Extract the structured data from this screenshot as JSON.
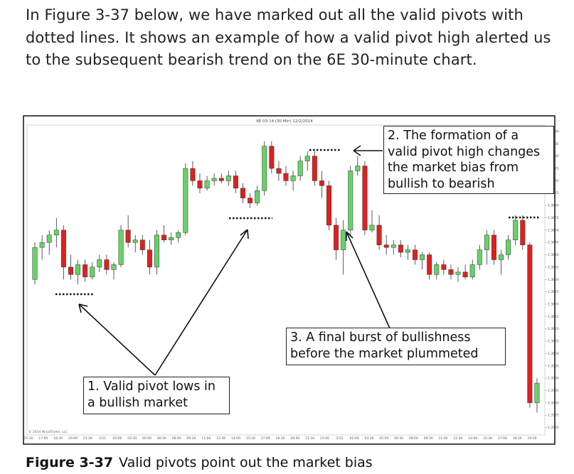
{
  "paragraph": "In Figure 3-37 below, we have marked out all the valid pivots with dotted lines. It shows an example of how a valid pivot high alerted us to the subsequent bearish trend on the 6E 30-minute chart.",
  "chart_data": {
    "type": "candlestick",
    "title": "6E 03-14 (30 Min) 12/2/2014",
    "copyright": "© 2014 NinjaTrader, LLC",
    "up_color": "#66d366",
    "down_color": "#e0201f",
    "ylim": [
      1.3567,
      1.3692
    ],
    "yticks": [
      {
        "value": 1.357,
        "label": "1.3570"
      },
      1.3575,
      {
        "value": 1.358,
        "label": "1.3580"
      },
      1.3585,
      {
        "value": 1.359,
        "label": "1.3590"
      },
      1.3595,
      {
        "value": 1.36,
        "label": "1.3600"
      },
      1.3605,
      {
        "value": 1.361,
        "label": "1.3610"
      },
      1.3615,
      {
        "value": 1.362,
        "label": "1.3620"
      },
      1.3625,
      {
        "value": 1.363,
        "label": "1.3630"
      },
      1.3635,
      {
        "value": 1.364,
        "label": "1.3640"
      },
      1.3645,
      {
        "value": 1.365,
        "label": "1.3650"
      },
      1.3655,
      {
        "value": 1.366,
        "label": "1.3660"
      },
      1.3665,
      {
        "value": 1.367,
        "label": "1.3670"
      },
      1.3675,
      {
        "value": 1.368,
        "label": "1.3680"
      },
      1.3685,
      {
        "value": 1.369,
        "label": "1.3690"
      }
    ],
    "xtick_labels": [
      "15:30",
      "17:00",
      "18:30",
      "20:00",
      "21:30",
      "2/11",
      "02:00",
      "03:30",
      "05:00",
      "06:30",
      "08:00",
      "09:30",
      "11:00",
      "12:30",
      "14:00",
      "15:30",
      "17:00",
      "18:30",
      "20:00",
      "21:30",
      "23:00",
      "2/12",
      "02:00",
      "03:30",
      "05:00",
      "06:30",
      "08:00",
      "09:30",
      "11:00",
      "12:30",
      "14:00",
      "15:30",
      "17:00",
      "18:30",
      "19:30"
    ],
    "open": [
      1.363,
      1.3643,
      1.3645,
      1.3648,
      1.365,
      1.3635,
      1.3632,
      1.3636,
      1.3631,
      1.3635,
      1.3638,
      1.3634,
      1.3636,
      1.365,
      1.3645,
      1.3646,
      1.3642,
      1.3635,
      1.3648,
      1.3646,
      1.3647,
      1.3649,
      1.3675,
      1.367,
      1.3667,
      1.367,
      1.3671,
      1.367,
      1.3672,
      1.3667,
      1.3663,
      1.3661,
      1.3666,
      1.3684,
      1.3675,
      1.3673,
      1.367,
      1.3672,
      1.3678,
      1.368,
      1.367,
      1.3668,
      1.3652,
      1.3642,
      1.365,
      1.3674,
      1.3676,
      1.365,
      1.3652,
      1.3644,
      1.3643,
      1.3644,
      1.3641,
      1.3642,
      1.3638,
      1.364,
      1.3632,
      1.3636,
      1.3634,
      1.3632,
      1.3633,
      1.3631,
      1.3636,
      1.3642,
      1.3648,
      1.3638,
      1.364,
      1.3646,
      1.3654,
      1.3644,
      1.358
    ],
    "high": [
      1.3645,
      1.3648,
      1.365,
      1.3655,
      1.3652,
      1.364,
      1.3638,
      1.3638,
      1.3637,
      1.364,
      1.364,
      1.3637,
      1.3652,
      1.3656,
      1.3648,
      1.3648,
      1.3646,
      1.365,
      1.3652,
      1.3649,
      1.365,
      1.3677,
      1.3678,
      1.3673,
      1.3672,
      1.3673,
      1.3673,
      1.3674,
      1.3674,
      1.3669,
      1.3665,
      1.3668,
      1.3686,
      1.3686,
      1.3678,
      1.3676,
      1.3674,
      1.368,
      1.3682,
      1.3682,
      1.3674,
      1.367,
      1.3655,
      1.3654,
      1.3676,
      1.368,
      1.3678,
      1.3658,
      1.3656,
      1.3648,
      1.3646,
      1.3646,
      1.3644,
      1.3644,
      1.3641,
      1.3641,
      1.3637,
      1.3638,
      1.3636,
      1.3635,
      1.3636,
      1.3638,
      1.3644,
      1.365,
      1.365,
      1.3642,
      1.3648,
      1.3656,
      1.3656,
      1.3645,
      1.359
    ],
    "low": [
      1.3628,
      1.3638,
      1.364,
      1.3643,
      1.363,
      1.363,
      1.3628,
      1.3629,
      1.363,
      1.3633,
      1.3632,
      1.363,
      1.3635,
      1.3643,
      1.3641,
      1.364,
      1.3632,
      1.3632,
      1.3645,
      1.3644,
      1.3645,
      1.3648,
      1.3668,
      1.3665,
      1.3666,
      1.3668,
      1.3669,
      1.3668,
      1.3665,
      1.3661,
      1.3659,
      1.366,
      1.3664,
      1.3673,
      1.367,
      1.3668,
      1.3666,
      1.367,
      1.3674,
      1.3668,
      1.3663,
      1.365,
      1.3638,
      1.3632,
      1.3648,
      1.3672,
      1.3648,
      1.3649,
      1.3642,
      1.364,
      1.364,
      1.3639,
      1.3638,
      1.3636,
      1.3634,
      1.363,
      1.363,
      1.3632,
      1.363,
      1.3629,
      1.363,
      1.363,
      1.3634,
      1.3636,
      1.3636,
      1.3632,
      1.3638,
      1.3644,
      1.3642,
      1.3578,
      1.3576
    ],
    "close": [
      1.3643,
      1.3645,
      1.3648,
      1.365,
      1.3635,
      1.3632,
      1.3636,
      1.3631,
      1.3635,
      1.3638,
      1.3634,
      1.3636,
      1.365,
      1.3645,
      1.3646,
      1.3642,
      1.3635,
      1.3648,
      1.3646,
      1.3647,
      1.3649,
      1.3675,
      1.367,
      1.3667,
      1.367,
      1.3671,
      1.367,
      1.3672,
      1.3667,
      1.3663,
      1.3661,
      1.3666,
      1.3684,
      1.3675,
      1.3673,
      1.367,
      1.3672,
      1.3678,
      1.368,
      1.367,
      1.3668,
      1.3652,
      1.3642,
      1.365,
      1.3674,
      1.3676,
      1.365,
      1.3652,
      1.3644,
      1.3643,
      1.3644,
      1.3641,
      1.3642,
      1.3638,
      1.364,
      1.3632,
      1.3636,
      1.3634,
      1.3632,
      1.3633,
      1.3631,
      1.3636,
      1.3642,
      1.3648,
      1.3638,
      1.364,
      1.3646,
      1.3654,
      1.3644,
      1.358,
      1.3588
    ],
    "annotations": [
      "2. The formation of a valid pivot high changes the market bias from bullish to bearish",
      "3. A final burst of bullishness before the market plummeted",
      "1. Valid pivot lows in a bullish market"
    ]
  },
  "caption": {
    "label": "Figure 3-37",
    "text": "Valid pivots point out the market bias"
  }
}
